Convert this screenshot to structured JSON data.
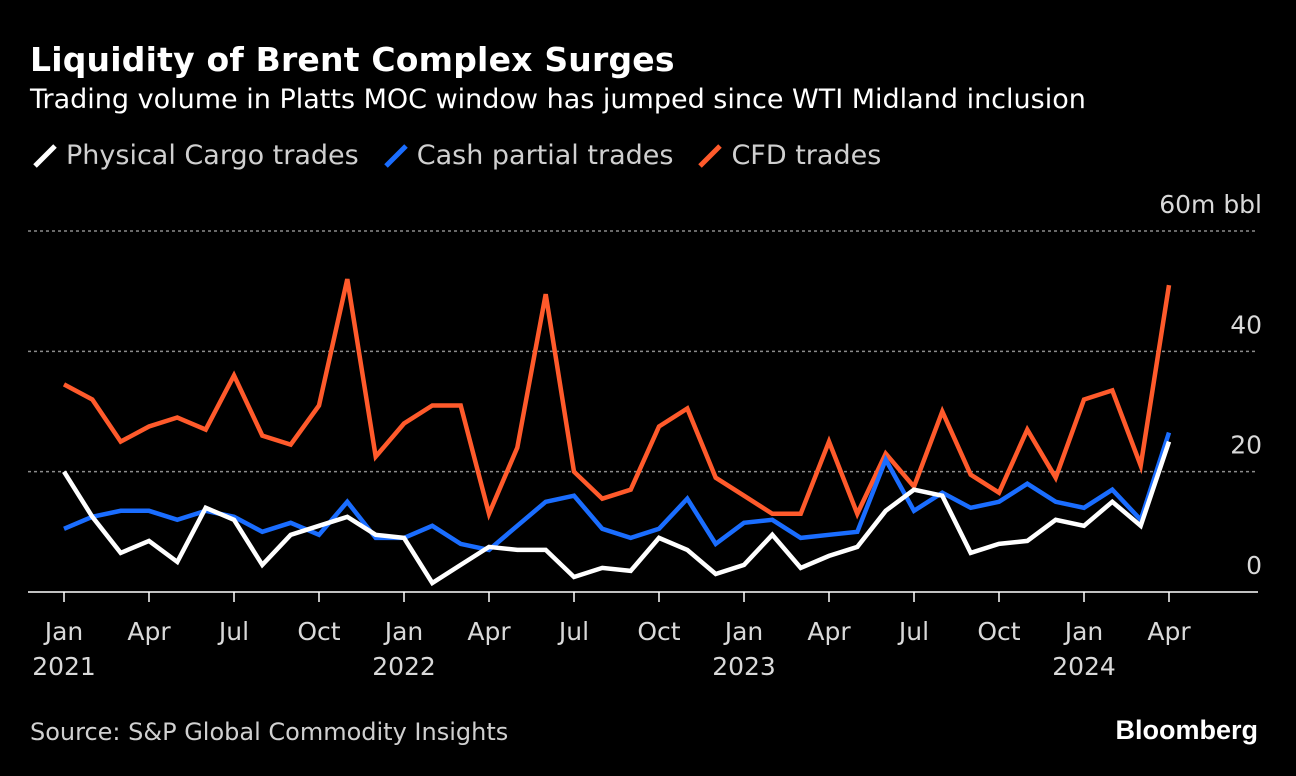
{
  "header": {
    "title": "Liquidity of Brent Complex Surges",
    "subtitle": "Trading volume in Platts MOC window has jumped since WTI Midland inclusion"
  },
  "footer": {
    "source": "Source: S&P Global Commodity Insights",
    "brand": "Bloomberg"
  },
  "colors": {
    "background": "#000000",
    "physical": "#ffffff",
    "cash": "#1a6dff",
    "cfd": "#ff5a2b",
    "grid": "#8c8c8c"
  },
  "chart_data": {
    "type": "line",
    "title": "Liquidity of Brent Complex Surges",
    "subtitle": "Trading volume in Platts MOC window has jumped since WTI Midland inclusion",
    "xlabel": "",
    "ylabel": "",
    "y_unit_label": "60m bbl",
    "ylim": [
      0,
      60
    ],
    "yticks": [
      0,
      20,
      40,
      60
    ],
    "ytick_labels": [
      "0",
      "20",
      "40",
      "60m bbl"
    ],
    "grid": true,
    "legend_placement": "top-left",
    "x": [
      "2021-01",
      "2021-02",
      "2021-03",
      "2021-04",
      "2021-05",
      "2021-06",
      "2021-07",
      "2021-08",
      "2021-09",
      "2021-10",
      "2021-11",
      "2021-12",
      "2022-01",
      "2022-02",
      "2022-03",
      "2022-04",
      "2022-05",
      "2022-06",
      "2022-07",
      "2022-08",
      "2022-09",
      "2022-10",
      "2022-11",
      "2022-12",
      "2023-01",
      "2023-02",
      "2023-03",
      "2023-04",
      "2023-05",
      "2023-06",
      "2023-07",
      "2023-08",
      "2023-09",
      "2023-10",
      "2023-11",
      "2023-12",
      "2024-01",
      "2024-02",
      "2024-03",
      "2024-04"
    ],
    "x_tick_labels": [
      {
        "month": "Jan",
        "year": "2021",
        "index": 0
      },
      {
        "month": "Apr",
        "year": "",
        "index": 3
      },
      {
        "month": "Jul",
        "year": "",
        "index": 6
      },
      {
        "month": "Oct",
        "year": "",
        "index": 9
      },
      {
        "month": "Jan",
        "year": "2022",
        "index": 12
      },
      {
        "month": "Apr",
        "year": "",
        "index": 15
      },
      {
        "month": "Jul",
        "year": "",
        "index": 18
      },
      {
        "month": "Oct",
        "year": "",
        "index": 21
      },
      {
        "month": "Jan",
        "year": "2023",
        "index": 24
      },
      {
        "month": "Apr",
        "year": "",
        "index": 27
      },
      {
        "month": "Jul",
        "year": "",
        "index": 30
      },
      {
        "month": "Oct",
        "year": "",
        "index": 33
      },
      {
        "month": "Jan",
        "year": "2024",
        "index": 36
      },
      {
        "month": "Apr",
        "year": "",
        "index": 39
      }
    ],
    "series": [
      {
        "name": "Physical Cargo trades",
        "color": "#ffffff",
        "values": [
          20,
          12.5,
          6.5,
          8.5,
          5,
          14,
          12,
          4.5,
          9.5,
          11,
          12.5,
          9.5,
          9,
          1.5,
          4.5,
          7.5,
          7,
          7,
          2.5,
          4,
          3.5,
          9,
          7,
          3,
          4.5,
          9.5,
          4,
          6,
          7.5,
          13.5,
          17,
          16,
          6.5,
          8,
          8.5,
          12,
          11,
          15,
          11,
          25
        ]
      },
      {
        "name": "Cash partial trades",
        "color": "#1a6dff",
        "values": [
          10.5,
          12.5,
          13.5,
          13.5,
          12,
          13.5,
          12.5,
          10,
          11.5,
          9.5,
          15,
          9,
          9,
          11,
          8,
          7,
          11,
          15,
          16,
          10.5,
          9,
          10.5,
          15.5,
          8,
          11.5,
          12,
          9,
          9.5,
          10,
          22,
          13.5,
          16.5,
          14,
          15,
          18,
          15,
          14,
          17,
          12,
          26.5
        ]
      },
      {
        "name": "CFD trades",
        "color": "#ff5a2b",
        "values": [
          34.5,
          32,
          25,
          27.5,
          29,
          27,
          36,
          26,
          24.5,
          31,
          52,
          22.5,
          28,
          31,
          31,
          13,
          24,
          49.5,
          20,
          15.5,
          17,
          27.5,
          30.5,
          19,
          16,
          13,
          13,
          25,
          13,
          23,
          17.5,
          30,
          19.5,
          16.5,
          27,
          19,
          32,
          33.5,
          21,
          51
        ]
      }
    ]
  }
}
